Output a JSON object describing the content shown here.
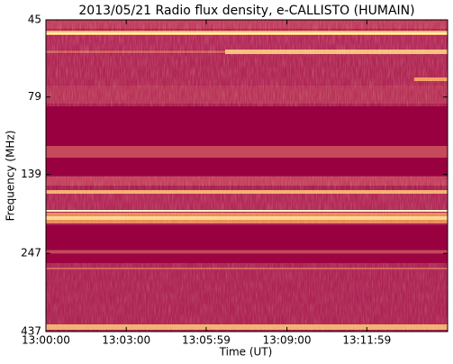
{
  "chart_data": {
    "type": "spectrogram",
    "title": "2013/05/21  Radio flux density, e-CALLISTO (HUMAIN)",
    "xlabel": "Time (UT)",
    "ylabel": "Frequency (MHz)",
    "xlim": [
      "13:00:00",
      "13:15:00"
    ],
    "xticks": [
      "13:00:00",
      "13:03:00",
      "13:05:59",
      "13:09:00",
      "13:11:59"
    ],
    "ylim": [
      45,
      437
    ],
    "yticks": [
      45,
      79,
      139,
      247,
      437
    ],
    "log_y": true,
    "y_inverted": true
  }
}
